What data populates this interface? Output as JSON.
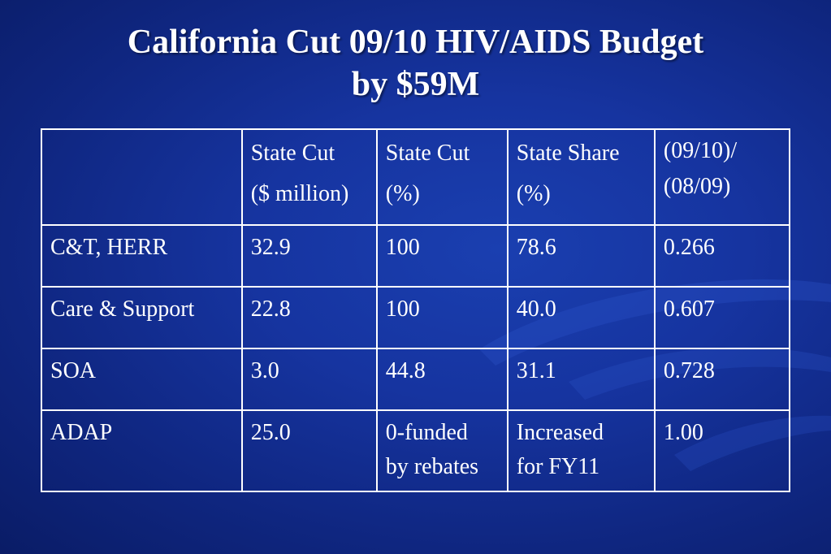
{
  "title": {
    "line1": "California Cut 09/10 HIV/AIDS Budget",
    "line2": "by $59M"
  },
  "table": {
    "header": [
      {
        "line1": "",
        "line2": ""
      },
      {
        "line1": "State Cut",
        "line2": "($ million)"
      },
      {
        "line1": "State Cut",
        "line2": "(%)"
      },
      {
        "line1": "State Share",
        "line2": "(%)"
      },
      {
        "line1": "(09/10)/",
        "line2": "(08/09)"
      }
    ],
    "rows": [
      {
        "label": "C&T, HERR",
        "state_cut_million": "32.9",
        "state_cut_pct": {
          "line1": "100",
          "line2": ""
        },
        "state_share_pct": {
          "line1": "78.6",
          "line2": ""
        },
        "ratio": "0.266"
      },
      {
        "label": "Care & Support",
        "state_cut_million": "22.8",
        "state_cut_pct": {
          "line1": "100",
          "line2": ""
        },
        "state_share_pct": {
          "line1": "40.0",
          "line2": ""
        },
        "ratio": "0.607"
      },
      {
        "label": "SOA",
        "state_cut_million": "3.0",
        "state_cut_pct": {
          "line1": "44.8",
          "line2": ""
        },
        "state_share_pct": {
          "line1": "31.1",
          "line2": ""
        },
        "ratio": "0.728"
      },
      {
        "label": "ADAP",
        "state_cut_million": "25.0",
        "state_cut_pct": {
          "line1": "0-funded",
          "line2": "by rebates"
        },
        "state_share_pct": {
          "line1": "Increased",
          "line2": "for FY11"
        },
        "ratio": "1.00"
      }
    ]
  },
  "colors": {
    "background": "#1634a0",
    "text": "#ffffff",
    "grid": "#ffffff"
  }
}
